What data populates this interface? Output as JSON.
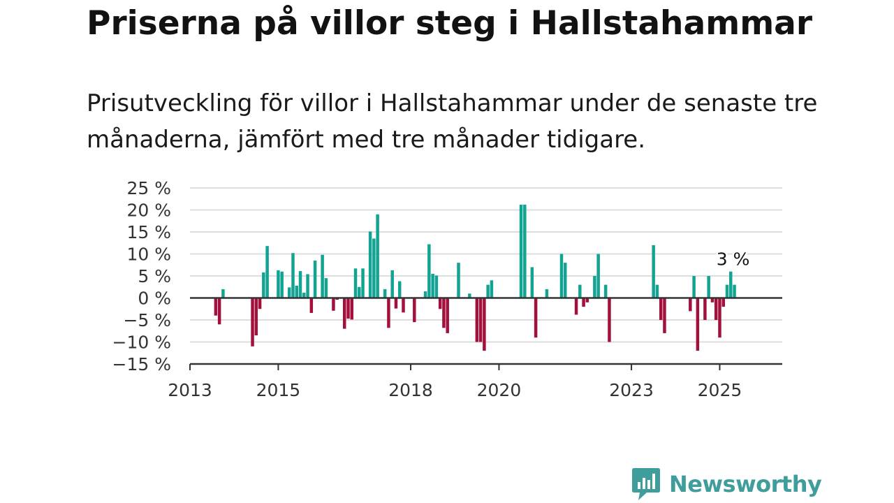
{
  "title": "Priserna på villor steg i Hallstahammar",
  "subtitle": "Prisutveckling för villor i Hallstahammar under de senaste tre månaderna, jämfört med tre månader tidigare.",
  "brand": {
    "name": "Newsworthy",
    "icon": "newsworthy-logo-icon"
  },
  "colors": {
    "positive": "#13a393",
    "negative": "#a3103c",
    "grid": "#dddddd",
    "axis": "#333333",
    "brand": "#3f9d9b"
  },
  "chart_data": {
    "type": "bar",
    "title": "Priserna på villor steg i Hallstahammar",
    "xlabel": "",
    "ylabel": "",
    "x_ticks": [
      {
        "label": "2013",
        "date": "2013-01"
      },
      {
        "label": "2015",
        "date": "2015-01"
      },
      {
        "label": "2018",
        "date": "2018-01"
      },
      {
        "label": "2020",
        "date": "2020-01"
      },
      {
        "label": "2023",
        "date": "2023-01"
      },
      {
        "label": "2025",
        "date": "2025-01"
      }
    ],
    "y_ticks": [
      {
        "value": 25,
        "label": "25 %"
      },
      {
        "value": 20,
        "label": "20 %"
      },
      {
        "value": 15,
        "label": "15 %"
      },
      {
        "value": 10,
        "label": "10 %"
      },
      {
        "value": 5,
        "label": "5 %"
      },
      {
        "value": 0,
        "label": "0 %"
      },
      {
        "value": -5,
        "label": "−5 %"
      },
      {
        "value": -10,
        "label": "−10 %"
      },
      {
        "value": -15,
        "label": "−15 %"
      }
    ],
    "ylim": [
      -15,
      25
    ],
    "xlim": [
      "2013-01",
      "2026-06"
    ],
    "grid": true,
    "annotation": {
      "label": "3 %",
      "date": "2025-05",
      "value": 3
    },
    "series": [
      {
        "values": [
          {
            "date": "2013-08",
            "value": -4
          },
          {
            "date": "2013-09",
            "value": -6
          },
          {
            "date": "2013-10",
            "value": 2
          },
          {
            "date": "2014-06",
            "value": -11
          },
          {
            "date": "2014-07",
            "value": -8.5
          },
          {
            "date": "2014-08",
            "value": -2.5
          },
          {
            "date": "2014-09",
            "value": 5.8
          },
          {
            "date": "2014-10",
            "value": 11.8
          },
          {
            "date": "2015-01",
            "value": 6.3
          },
          {
            "date": "2015-02",
            "value": 6
          },
          {
            "date": "2015-04",
            "value": 2.4
          },
          {
            "date": "2015-05",
            "value": 10.2
          },
          {
            "date": "2015-06",
            "value": 2.8
          },
          {
            "date": "2015-07",
            "value": 6.1
          },
          {
            "date": "2015-08",
            "value": 1.2
          },
          {
            "date": "2015-09",
            "value": 5.4
          },
          {
            "date": "2015-10",
            "value": -3.4
          },
          {
            "date": "2015-11",
            "value": 8.5
          },
          {
            "date": "2016-01",
            "value": 9.8
          },
          {
            "date": "2016-02",
            "value": 4.5
          },
          {
            "date": "2016-04",
            "value": -2.9
          },
          {
            "date": "2016-05",
            "value": -0.4
          },
          {
            "date": "2016-07",
            "value": -7
          },
          {
            "date": "2016-08",
            "value": -4.7
          },
          {
            "date": "2016-09",
            "value": -4.9
          },
          {
            "date": "2016-10",
            "value": 6.7
          },
          {
            "date": "2016-11",
            "value": 2.5
          },
          {
            "date": "2016-12",
            "value": 6.7
          },
          {
            "date": "2017-02",
            "value": 15.1
          },
          {
            "date": "2017-03",
            "value": 13.5
          },
          {
            "date": "2017-04",
            "value": 19
          },
          {
            "date": "2017-06",
            "value": 2
          },
          {
            "date": "2017-07",
            "value": -6.8
          },
          {
            "date": "2017-08",
            "value": 6.3
          },
          {
            "date": "2017-09",
            "value": -2.4
          },
          {
            "date": "2017-10",
            "value": 3.8
          },
          {
            "date": "2017-11",
            "value": -3.3
          },
          {
            "date": "2018-02",
            "value": -5.5
          },
          {
            "date": "2018-05",
            "value": 1.5
          },
          {
            "date": "2018-06",
            "value": 12.2
          },
          {
            "date": "2018-07",
            "value": 5.5
          },
          {
            "date": "2018-08",
            "value": 5.1
          },
          {
            "date": "2018-09",
            "value": -2.5
          },
          {
            "date": "2018-10",
            "value": -6.8
          },
          {
            "date": "2018-11",
            "value": -8
          },
          {
            "date": "2019-02",
            "value": 8
          },
          {
            "date": "2019-05",
            "value": 1
          },
          {
            "date": "2019-07",
            "value": -10
          },
          {
            "date": "2019-08",
            "value": -10
          },
          {
            "date": "2019-09",
            "value": -12
          },
          {
            "date": "2019-10",
            "value": 3
          },
          {
            "date": "2019-11",
            "value": 4
          },
          {
            "date": "2020-07",
            "value": 21.2
          },
          {
            "date": "2020-08",
            "value": 21.2
          },
          {
            "date": "2020-10",
            "value": 7
          },
          {
            "date": "2020-11",
            "value": -9
          },
          {
            "date": "2021-02",
            "value": 2
          },
          {
            "date": "2021-06",
            "value": 10
          },
          {
            "date": "2021-07",
            "value": 8
          },
          {
            "date": "2021-10",
            "value": -3.8
          },
          {
            "date": "2021-11",
            "value": 3
          },
          {
            "date": "2021-12",
            "value": -2
          },
          {
            "date": "2022-01",
            "value": -1
          },
          {
            "date": "2022-03",
            "value": 5
          },
          {
            "date": "2022-04",
            "value": 10
          },
          {
            "date": "2022-06",
            "value": 3
          },
          {
            "date": "2022-07",
            "value": -10
          },
          {
            "date": "2023-07",
            "value": 12
          },
          {
            "date": "2023-08",
            "value": 3
          },
          {
            "date": "2023-09",
            "value": -5
          },
          {
            "date": "2023-10",
            "value": -8
          },
          {
            "date": "2024-05",
            "value": -3
          },
          {
            "date": "2024-06",
            "value": 5
          },
          {
            "date": "2024-07",
            "value": -12
          },
          {
            "date": "2024-09",
            "value": -5
          },
          {
            "date": "2024-10",
            "value": 5
          },
          {
            "date": "2024-11",
            "value": -1
          },
          {
            "date": "2024-12",
            "value": -5
          },
          {
            "date": "2025-01",
            "value": -9
          },
          {
            "date": "2025-02",
            "value": -2
          },
          {
            "date": "2025-03",
            "value": 3
          },
          {
            "date": "2025-04",
            "value": 6
          },
          {
            "date": "2025-05",
            "value": 3
          }
        ]
      }
    ]
  }
}
